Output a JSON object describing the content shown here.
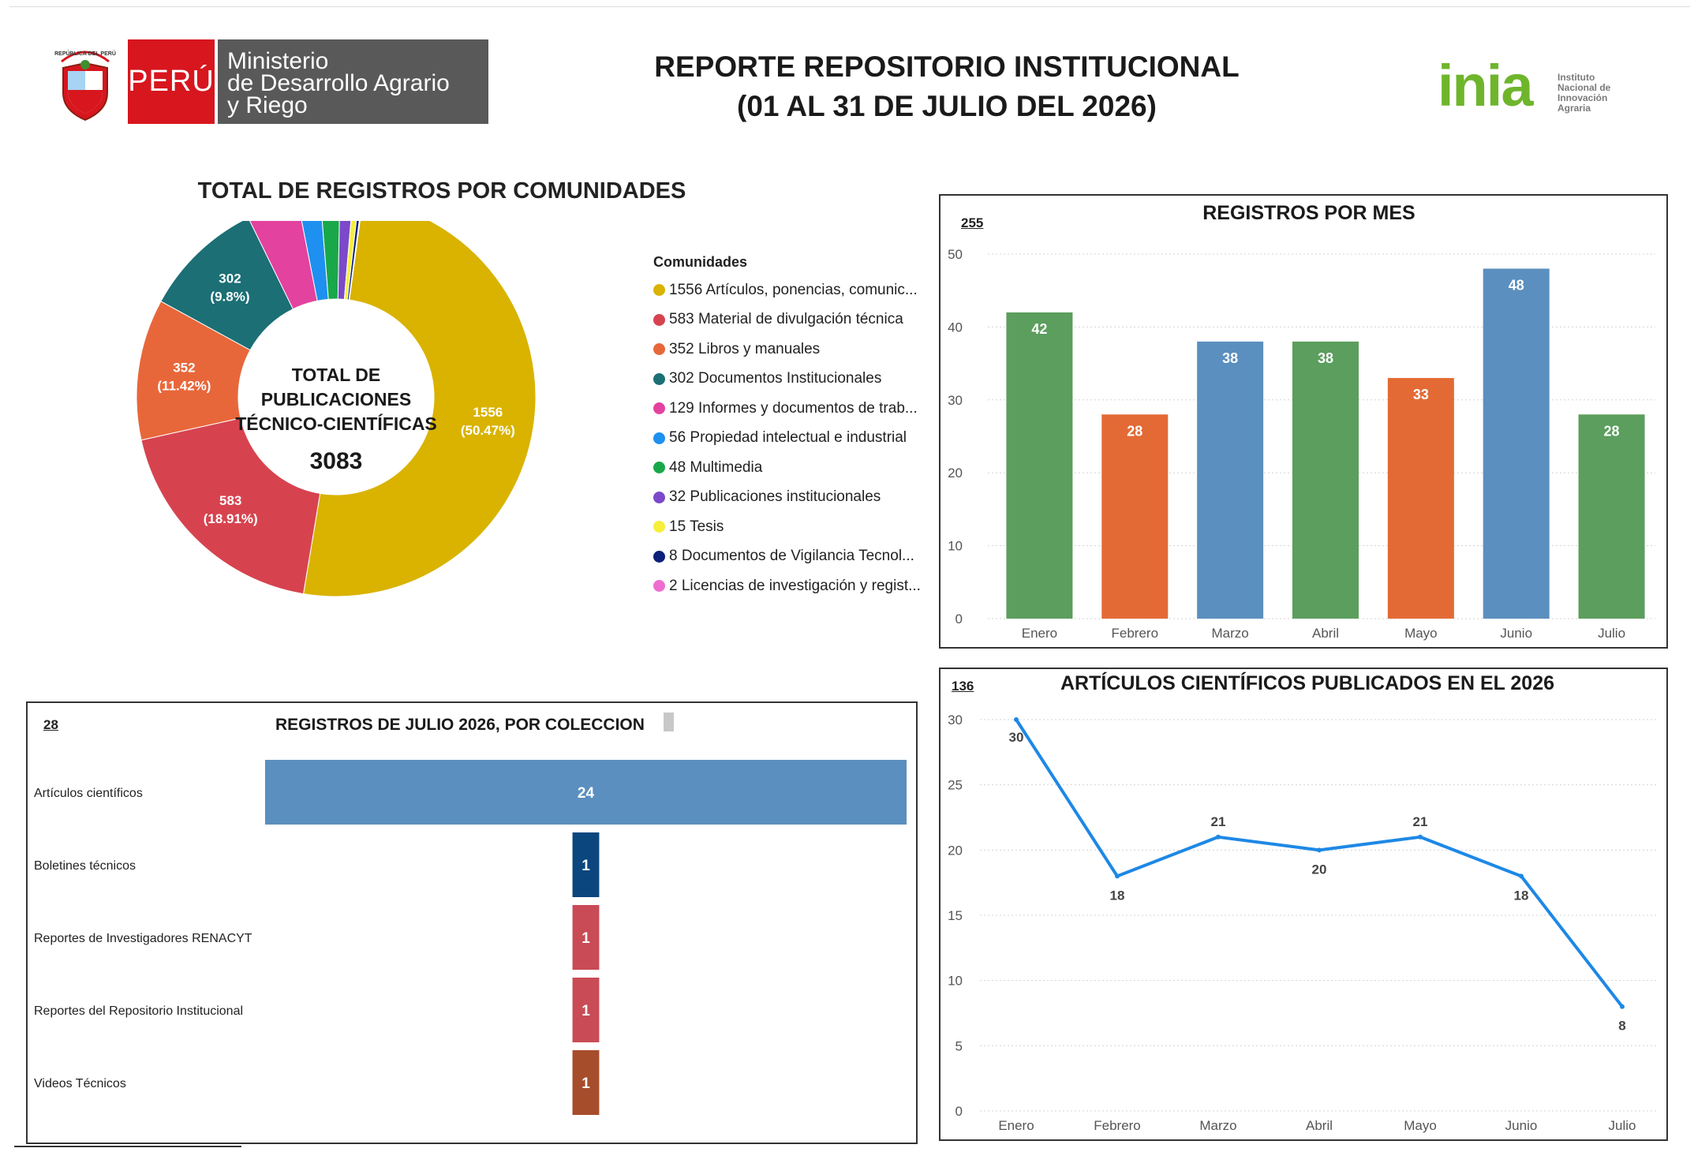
{
  "header": {
    "ministry_country": "PERÚ",
    "ministry_line1": "Ministerio",
    "ministry_line2": "de Desarrollo Agrario",
    "ministry_line3": "y Riego",
    "crest_text": "REPÚBLICA DEL PERÚ",
    "title_line1": "REPORTE REPOSITORIO INSTITUCIONAL",
    "title_line2": "(01 AL 31 DE JULIO DEL 2026)",
    "inia_word": "inia",
    "inia_sub1": "Instituto",
    "inia_sub2": "Nacional de",
    "inia_sub3": "Innovación",
    "inia_sub4": "Agraria"
  },
  "colors": {
    "green": "#5b9e5d",
    "orange": "#e36a35",
    "blue": "#5b8fbf",
    "line": "#1e88e5",
    "dark_blue_bar": "#0b467f",
    "red_bar": "#c94b55",
    "brown_bar": "#a64d2b"
  },
  "chart_data": [
    {
      "type": "pie",
      "title": "TOTAL DE REGISTROS POR COMUNIDADES",
      "center_label_1": "TOTAL DE",
      "center_label_2": "PUBLICACIONES",
      "center_label_3": "TÉCNICO-CIENTÍFICAS",
      "center_total": "3083",
      "legend_title": "Comunidades",
      "legend_placement": "right",
      "slices": [
        {
          "legend": "1556 Artículos, ponencias, comunic...",
          "value": 1556,
          "color": "#d9b300",
          "label": "1556",
          "pct": "(50.47%)"
        },
        {
          "legend": "583 Material de divulgación técnica",
          "value": 583,
          "color": "#d6434f",
          "label": "583",
          "pct": "(18.91%)"
        },
        {
          "legend": "352 Libros y manuales",
          "value": 352,
          "color": "#e8673a",
          "label": "352",
          "pct": "(11.42%)"
        },
        {
          "legend": "302 Documentos Institucionales",
          "value": 302,
          "color": "#1b6f75",
          "label": "302",
          "pct": "(9.8%)"
        },
        {
          "legend": "129 Informes y documentos de trab...",
          "value": 129,
          "color": "#e3429f",
          "label": "",
          "pct": ""
        },
        {
          "legend": "56 Propiedad intelectual e industrial",
          "value": 56,
          "color": "#1e90f0",
          "label": "",
          "pct": ""
        },
        {
          "legend": "48 Multimedia",
          "value": 48,
          "color": "#18a84a",
          "label": "",
          "pct": ""
        },
        {
          "legend": "32 Publicaciones institucionales",
          "value": 32,
          "color": "#7b49c9",
          "label": "",
          "pct": ""
        },
        {
          "legend": "15 Tesis",
          "value": 15,
          "color": "#f7ef3a",
          "label": "",
          "pct": ""
        },
        {
          "legend": "8 Documentos de Vigilancia Tecnol...",
          "value": 8,
          "color": "#0c1f7a",
          "label": "",
          "pct": ""
        },
        {
          "legend": "2 Licencias de investigación y regist...",
          "value": 2,
          "color": "#ee6dd0",
          "label": "",
          "pct": ""
        }
      ]
    },
    {
      "type": "bar",
      "title": "REGISTROS POR MES",
      "total": "255",
      "categories": [
        "Enero",
        "Febrero",
        "Marzo",
        "Abril",
        "Mayo",
        "Junio",
        "Julio"
      ],
      "values": [
        42,
        28,
        38,
        38,
        33,
        48,
        28
      ],
      "bar_colors": [
        "#5b9e5d",
        "#e36a35",
        "#5b8fbf",
        "#5b9e5d",
        "#e36a35",
        "#5b8fbf",
        "#5b9e5d"
      ],
      "ylim": [
        0,
        50
      ],
      "yticks": [
        0,
        10,
        20,
        30,
        40,
        50
      ],
      "grid": true
    },
    {
      "type": "bar",
      "orientation": "horizontal",
      "title": "REGISTROS DE JULIO 2026, POR COLECCION",
      "total": "28",
      "categories": [
        "Artículos científicos",
        "Boletines técnicos",
        "Reportes de Investigadores RENACYT",
        "Reportes del Repositorio Institucional",
        "Videos Técnicos"
      ],
      "values": [
        24,
        1,
        1,
        1,
        1
      ],
      "bar_colors": [
        "#5b8fbf",
        "#0b467f",
        "#c94b55",
        "#c94b55",
        "#a64d2b"
      ]
    },
    {
      "type": "line",
      "title": "ARTÍCULOS CIENTÍFICOS PUBLICADOS EN EL 2026",
      "total": "136",
      "categories": [
        "Enero",
        "Febrero",
        "Marzo",
        "Abril",
        "Mayo",
        "Junio",
        "Julio"
      ],
      "values": [
        30,
        18,
        21,
        20,
        21,
        18,
        8
      ],
      "ylim": [
        0,
        30
      ],
      "yticks": [
        0,
        5,
        10,
        15,
        20,
        25,
        30
      ],
      "grid": true
    }
  ]
}
